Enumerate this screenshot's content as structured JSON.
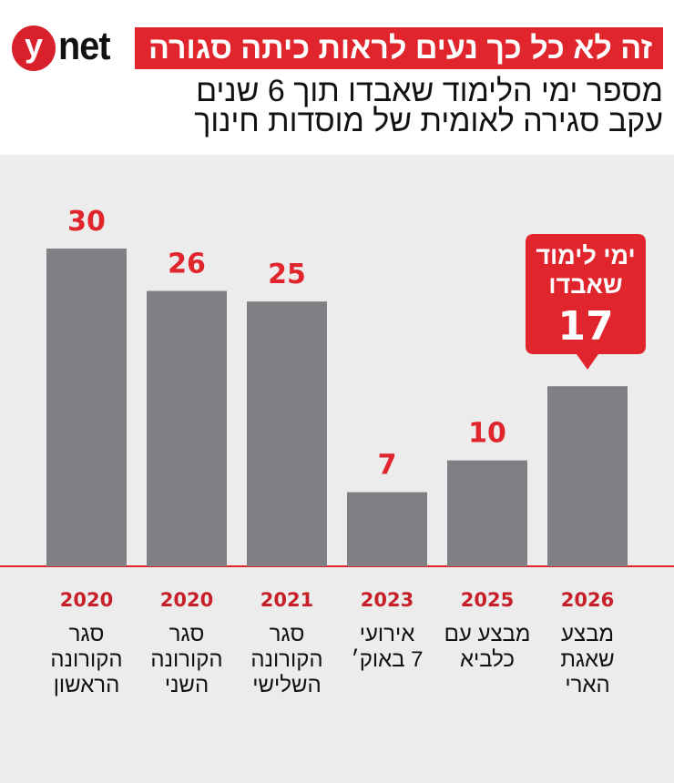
{
  "logo": {
    "brand": "ynet",
    "letter": "y",
    "rest": "net"
  },
  "header": {
    "title": "זה לא כל כך נעים לראות כיתה סגורה",
    "subtitle_lines": [
      "מספר ימי הלימוד שאבדו תוך 6 שנים",
      "עקב סגירה לאומית של מוסדות חינוך"
    ]
  },
  "colors": {
    "accent": "#e0252d",
    "bar": "#808084",
    "background": "#ececec"
  },
  "chart_data": {
    "type": "bar",
    "categories": [
      {
        "year": "2020",
        "label": [
          "סגר",
          "הקורונה",
          "הראשון"
        ]
      },
      {
        "year": "2020",
        "label": [
          "סגר",
          "הקורונה",
          "השני"
        ]
      },
      {
        "year": "2021",
        "label": [
          "סגר",
          "הקורונה",
          "השלישי"
        ]
      },
      {
        "year": "2023",
        "label": [
          "אירועי",
          "7 באוק׳"
        ]
      },
      {
        "year": "2025",
        "label": [
          "מבצע עם",
          "כלביא"
        ]
      },
      {
        "year": "2026",
        "label": [
          "מבצע",
          "שאגת",
          "הארי"
        ]
      }
    ],
    "values": [
      30,
      26,
      25,
      7,
      10,
      17
    ],
    "ylim": [
      0,
      30
    ],
    "grid": false,
    "annotation": {
      "lines": [
        "ימי לימוד",
        "שאבדו"
      ],
      "value": "17"
    }
  }
}
